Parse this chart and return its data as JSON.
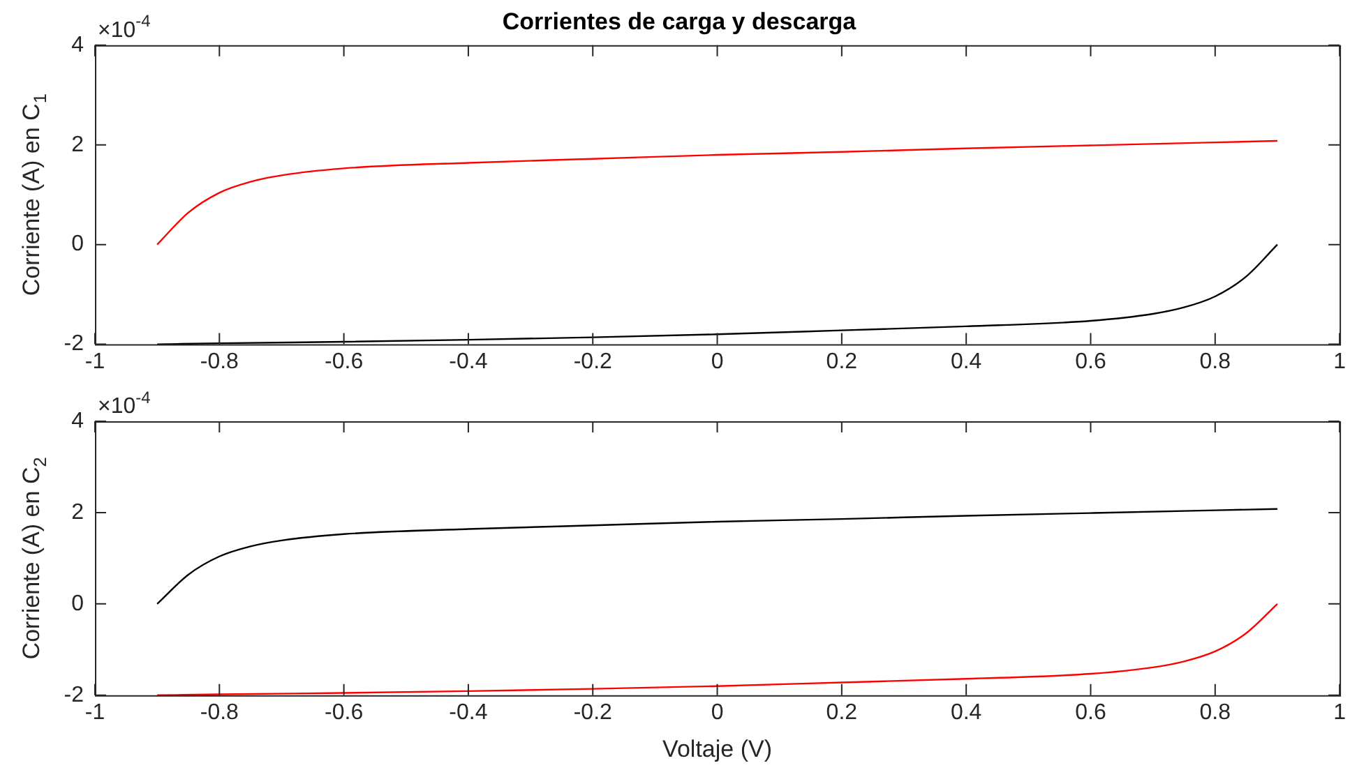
{
  "chart_data": [
    {
      "type": "line",
      "title": "Corrientes de carga y descarga",
      "ylabel": "Corriente (A) en C$_{1}$",
      "annotations": [
        "×10$^{-4}$"
      ],
      "xlim": [
        -1,
        1
      ],
      "xticks": [
        -1,
        -0.8,
        -0.6,
        -0.4,
        -0.2,
        0,
        0.2,
        0.4,
        0.6,
        0.8,
        1
      ],
      "ylim": [
        -2,
        4
      ],
      "yticks": [
        -2,
        0,
        2,
        4
      ],
      "grid": false,
      "legend": false,
      "series": [
        {
          "color": "#ff0000",
          "x": [
            -0.9,
            -0.85,
            -0.8,
            -0.75,
            -0.7,
            -0.6,
            -0.4,
            -0.2,
            0,
            0.2,
            0.4,
            0.6,
            0.8,
            0.9
          ],
          "values": [
            0,
            0.64,
            1.04,
            1.26,
            1.39,
            1.53,
            1.64,
            1.72,
            1.8,
            1.86,
            1.93,
            1.99,
            2.05,
            2.08
          ]
        },
        {
          "color": "#000000",
          "x": [
            -0.9,
            -0.8,
            -0.6,
            -0.4,
            -0.2,
            0,
            0.2,
            0.4,
            0.6,
            0.7,
            0.75,
            0.8,
            0.85,
            0.9
          ],
          "values": [
            -2,
            -1.98,
            -1.95,
            -1.91,
            -1.86,
            -1.8,
            -1.72,
            -1.64,
            -1.53,
            -1.39,
            -1.26,
            -1.04,
            -0.64,
            0
          ]
        }
      ]
    },
    {
      "type": "line",
      "xlabel": "Voltaje (V)",
      "ylabel": "Corriente (A) en C$_{2}$",
      "annotations": [
        "×10$^{-4}$"
      ],
      "xlim": [
        -1,
        1
      ],
      "xticks": [
        -1,
        -0.8,
        -0.6,
        -0.4,
        -0.2,
        0,
        0.2,
        0.4,
        0.6,
        0.8,
        1
      ],
      "ylim": [
        -2,
        4
      ],
      "yticks": [
        -2,
        0,
        2,
        4
      ],
      "grid": false,
      "legend": false,
      "series": [
        {
          "color": "#000000",
          "x": [
            -0.9,
            -0.85,
            -0.8,
            -0.75,
            -0.7,
            -0.6,
            -0.4,
            -0.2,
            0,
            0.2,
            0.4,
            0.6,
            0.8,
            0.9
          ],
          "values": [
            0,
            0.64,
            1.04,
            1.26,
            1.39,
            1.53,
            1.64,
            1.72,
            1.8,
            1.86,
            1.93,
            1.99,
            2.05,
            2.08
          ]
        },
        {
          "color": "#ff0000",
          "x": [
            -0.9,
            -0.8,
            -0.6,
            -0.4,
            -0.2,
            0,
            0.2,
            0.4,
            0.6,
            0.7,
            0.75,
            0.8,
            0.85,
            0.9
          ],
          "values": [
            -2,
            -1.98,
            -1.95,
            -1.91,
            -1.86,
            -1.8,
            -1.72,
            -1.64,
            -1.53,
            -1.39,
            -1.26,
            -1.04,
            -0.64,
            0
          ]
        }
      ]
    }
  ]
}
